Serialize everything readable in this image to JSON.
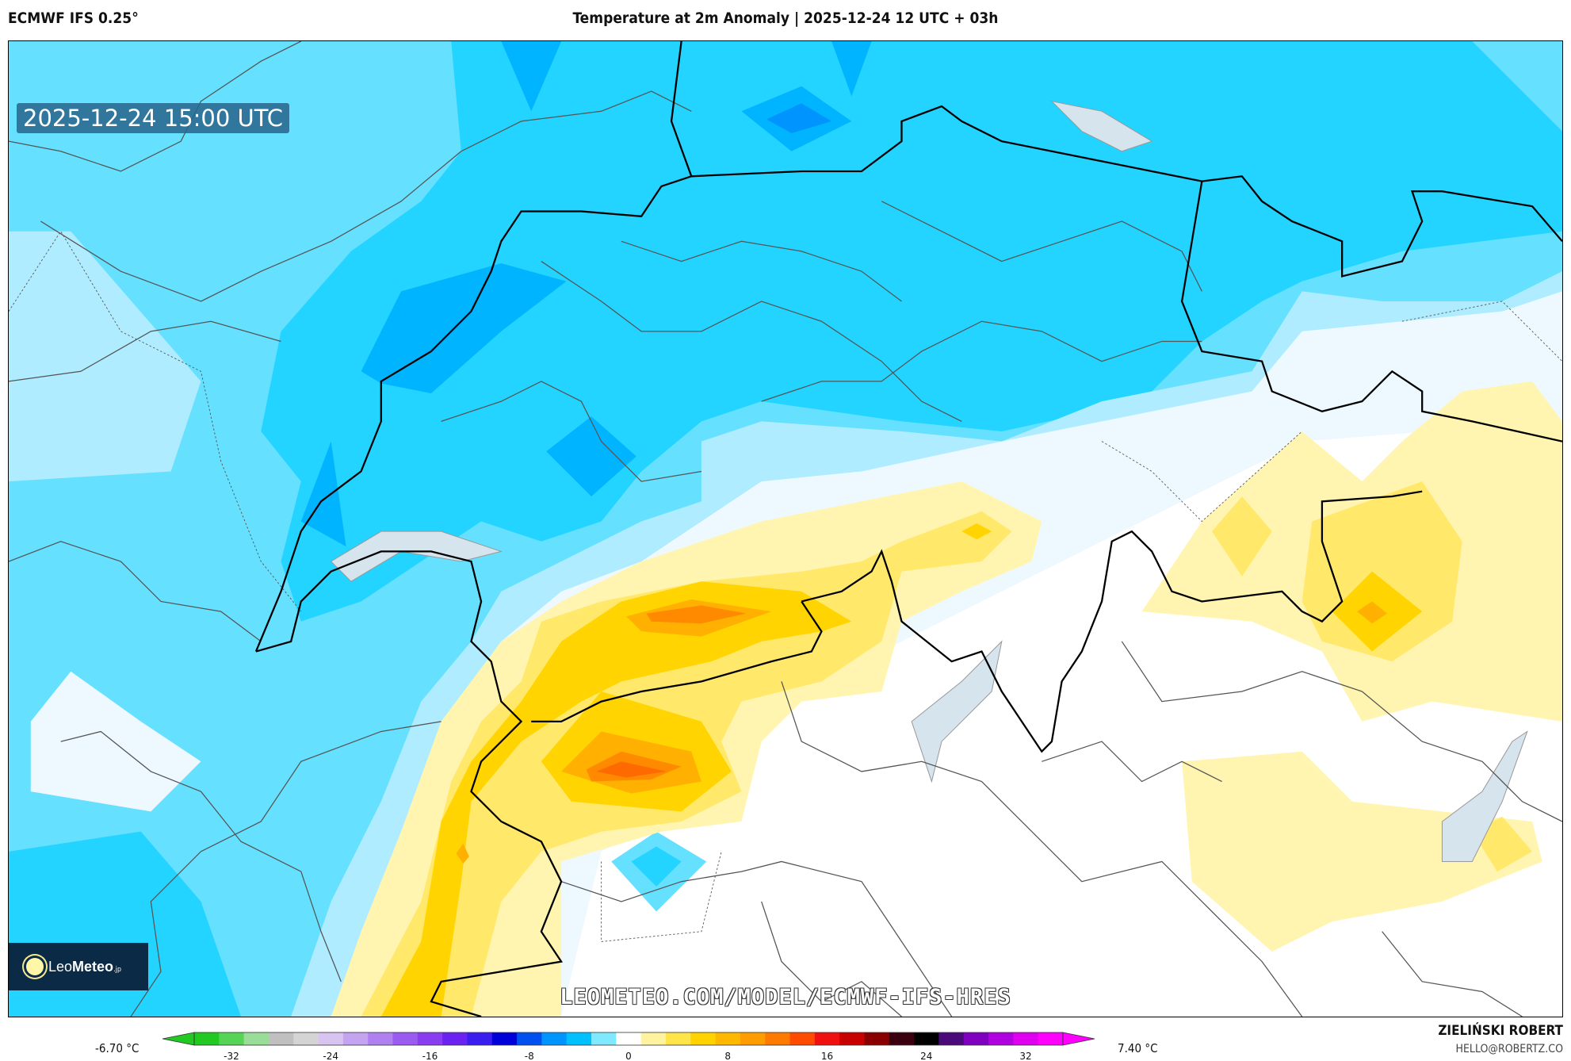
{
  "header": {
    "model": "ECMWF IFS 0.25°",
    "title": "Temperature at 2m Anomaly | 2025-12-24 12 UTC + 03h"
  },
  "map": {
    "valid_time": "2025-12-24 15:00 UTC",
    "watermark": "LEOMETEO.COM/MODEL/ECMWF-IFS-HRES",
    "logo": {
      "part1": "Leo",
      "part2": "Meteo",
      "suffix": ".jp"
    }
  },
  "legend": {
    "min_label": "-6.70 °C",
    "max_label": "7.40 °C",
    "ticks": [
      "-32",
      "-24",
      "-16",
      "-8",
      "0",
      "8",
      "16",
      "24",
      "32"
    ],
    "tick_values": [
      -32,
      -24,
      -16,
      -8,
      0,
      8,
      16,
      24,
      32
    ],
    "range": [
      -35,
      35
    ],
    "colors": [
      "#22c922",
      "#55d455",
      "#99dd99",
      "#c0c0c0",
      "#d4d4d4",
      "#d8c4f0",
      "#c4a4f0",
      "#b080f0",
      "#9a5cf0",
      "#8a3cf0",
      "#6a22f0",
      "#3a1ef0",
      "#0000d8",
      "#0050f0",
      "#0094ff",
      "#00c0ff",
      "#80e8ff",
      "#ffffff",
      "#fff3a0",
      "#ffe44a",
      "#ffd200",
      "#ffb800",
      "#ff9c00",
      "#ff7a00",
      "#ff4a00",
      "#f01010",
      "#c80000",
      "#8a0000",
      "#3a0010",
      "#000000",
      "#4a0a7a",
      "#8000c0",
      "#b000e0",
      "#e000f0",
      "#ff00ff"
    ]
  },
  "credits": {
    "author": "ZIELIŃSKI ROBERT",
    "email": "HELLO@ROBERTZ.CO"
  }
}
